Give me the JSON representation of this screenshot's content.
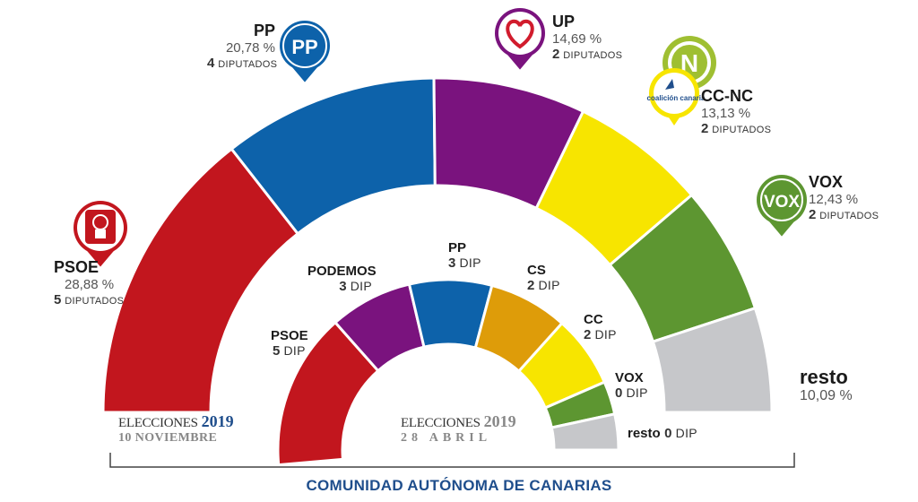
{
  "chart_data": [
    {
      "type": "semicircle",
      "title_prefix": "ELECCIONES",
      "title_year": "2019",
      "title_date": "10 NOVIEMBRE",
      "series": [
        {
          "name": "PSOE",
          "percent_label": "28,88 %",
          "seats": "5",
          "seats_word": "DIPUTADOS",
          "value": 28.88,
          "color": "#c2161e",
          "icon": "psoe-rose-icon"
        },
        {
          "name": "PP",
          "percent_label": "20,78 %",
          "seats": "4",
          "seats_word": "DIPUTADOS",
          "value": 20.78,
          "color": "#0d62aa",
          "icon": "pp-logo-icon"
        },
        {
          "name": "UP",
          "percent_label": "14,69 %",
          "seats": "2",
          "seats_word": "DIPUTADOS",
          "value": 14.69,
          "color": "#7a137e",
          "icon": "up-heart-icon"
        },
        {
          "name": "CC-NC",
          "percent_label": "13,13 %",
          "seats": "2",
          "seats_word": "DIPUTADOS",
          "value": 13.13,
          "color": "#f7e500",
          "icon": "coalicion-canaria-icon",
          "icon_text": "coalición canaria",
          "icon2_text": "N"
        },
        {
          "name": "VOX",
          "percent_label": "12,43 %",
          "seats": "2",
          "seats_word": "DIPUTADOS",
          "value": 12.43,
          "color": "#5d9631",
          "icon": "vox-logo-icon",
          "icon_text": "VOX"
        },
        {
          "name": "resto",
          "percent_label": "10,09 %",
          "value": 10.09,
          "color": "#c6c7ca"
        }
      ]
    },
    {
      "type": "semicircle",
      "title_prefix": "ELECCIONES",
      "title_year": "2019",
      "title_date": "28 ABRIL",
      "series": [
        {
          "name": "PSOE",
          "seats": "5",
          "seats_word": "DIP",
          "value": 28.9,
          "color": "#c2161e"
        },
        {
          "name": "PODEMOS",
          "seats": "3",
          "seats_word": "DIP",
          "value": 15.3,
          "color": "#7a137e"
        },
        {
          "name": "PP",
          "seats": "3",
          "seats_word": "DIP",
          "value": 15.2,
          "color": "#0d62aa"
        },
        {
          "name": "CS",
          "seats": "2",
          "seats_word": "DIP",
          "value": 14.6,
          "color": "#de9c09"
        },
        {
          "name": "CC",
          "seats": "2",
          "seats_word": "DIP",
          "value": 13.3,
          "color": "#f7e500"
        },
        {
          "name": "VOX",
          "seats": "0",
          "seats_word": "DIP",
          "value": 6.1,
          "color": "#5d9631"
        },
        {
          "name": "resto",
          "seats": "0",
          "seats_word": "DIP",
          "value": 6.6,
          "color": "#c6c7ca"
        }
      ]
    }
  ],
  "footer": "COMUNIDAD AUTÓNOMA DE CANARIAS"
}
